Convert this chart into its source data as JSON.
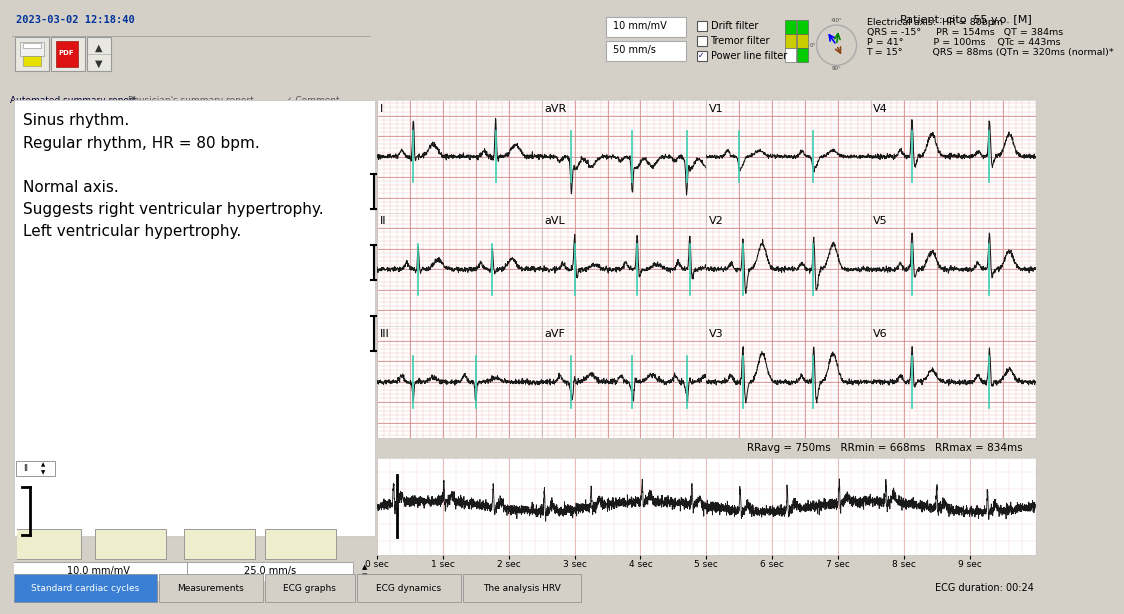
{
  "title_patient": "Patient: cito  55 y.o. [M]",
  "datetime": "2023-03-02 12:18:40",
  "bg_color": "#d4d0c8",
  "report_text": "Sinus rhythm.\nRegular rhythm, HR = 80 bpm.\n\nNormal axis.\nSuggests right ventricular hypertrophy.\nLeft ventricular hypertrophy.",
  "filter_labels": [
    "Drift filter",
    "Tremor filter",
    "Power line filter"
  ],
  "speed_label1": "10 mm/mV",
  "speed_label2": "50 mm/s",
  "elec_line1": "Electrical axis:  HR = 80bpm",
  "elec_line2": "QRS = -15°     PR = 154ms   QT = 384ms",
  "elec_line3": "P = 41°          P = 100ms    QTc = 443ms",
  "elec_line4": "T = 15°          QRS = 88ms (QTn = 320ms (normal)*",
  "tabs": [
    "Automated summary report",
    "Physician's summary report",
    "✓ Comment"
  ],
  "ecg_lead_labels": [
    [
      "I",
      "aVR",
      "V1",
      "V4"
    ],
    [
      "II",
      "aVL",
      "V2",
      "V5"
    ],
    [
      "III",
      "aVF",
      "V3",
      "V6"
    ]
  ],
  "bottom_info": "RRavg = 750ms   RRmin = 668ms   RRmax = 834ms",
  "bottom_scale_labels": [
    "0 sec",
    "1 sec",
    "2 sec",
    "3 sec",
    "4 sec",
    "5 sec",
    "6 sec",
    "7 sec",
    "8 sec",
    "9 sec"
  ],
  "bottom_tabs": [
    "Standard cardiac cycles",
    "Measurements",
    "ECG graphs",
    "ECG dynamics",
    "The analysis HRV"
  ],
  "ecg_duration": "ECG duration: 00:24",
  "scale_label": "10.0 mm/mV",
  "scale_label2": "25.0 mm/s",
  "green": "#00cc00",
  "yellow": "#cccc00",
  "ecg_line": "#1a1a1a",
  "ecg_cyan": "#3dcfb0",
  "grid_fine": "#f0c0c0",
  "grid_bold": "#d89090"
}
